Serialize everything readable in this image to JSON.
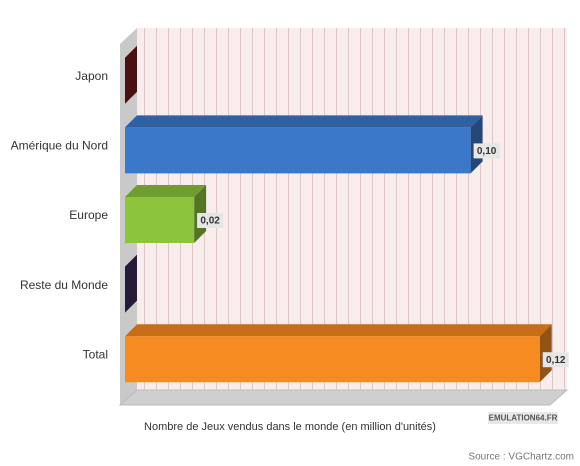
{
  "chart_data": {
    "type": "bar3d",
    "categories": [
      "Japon",
      "Amérique du Nord",
      "Europe",
      "Reste du Monde",
      "Total"
    ],
    "values": [
      0,
      0.1,
      0.02,
      0,
      0.12
    ],
    "value_labels": [
      null,
      "0,10",
      "0,02",
      null,
      "0,12"
    ],
    "colors": [
      "#7b1c1c",
      "#3b78c9",
      "#8cc43c",
      "#3e2b5c",
      "#f68b22"
    ],
    "xlabel": "Nombre de Jeux vendus dans le monde (en million d'unités)",
    "xlim": [
      0,
      0.125
    ],
    "source": "Source : VGChartz.com",
    "logo": "EMULATION64.FR"
  }
}
